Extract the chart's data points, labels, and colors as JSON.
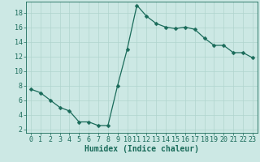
{
  "x": [
    0,
    1,
    2,
    3,
    4,
    5,
    6,
    7,
    8,
    9,
    10,
    11,
    12,
    13,
    14,
    15,
    16,
    17,
    18,
    19,
    20,
    21,
    22,
    23
  ],
  "y": [
    7.5,
    7.0,
    6.0,
    5.0,
    4.5,
    3.0,
    3.0,
    2.5,
    2.5,
    8.0,
    13.0,
    19.0,
    17.5,
    16.5,
    16.0,
    15.8,
    16.0,
    15.7,
    14.5,
    13.5,
    13.5,
    12.5,
    12.5,
    11.8
  ],
  "line_color": "#1a6b5a",
  "marker": "D",
  "marker_size": 2.5,
  "bg_color": "#cce8e4",
  "grid_color": "#b0d4ce",
  "xlabel": "Humidex (Indice chaleur)",
  "xlabel_fontsize": 7,
  "tick_fontsize": 6,
  "ylim": [
    1.5,
    19.5
  ],
  "xlim": [
    -0.5,
    23.5
  ],
  "yticks": [
    2,
    4,
    6,
    8,
    10,
    12,
    14,
    16,
    18
  ],
  "xticks": [
    0,
    1,
    2,
    3,
    4,
    5,
    6,
    7,
    8,
    9,
    10,
    11,
    12,
    13,
    14,
    15,
    16,
    17,
    18,
    19,
    20,
    21,
    22,
    23
  ]
}
